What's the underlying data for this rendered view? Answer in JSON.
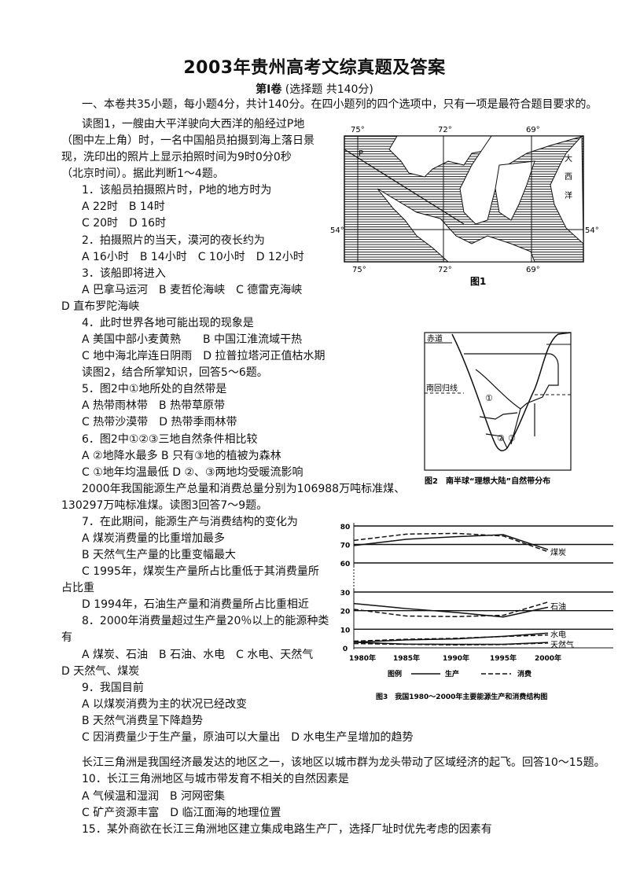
{
  "header": {
    "title": "2003年贵州高考文综真题及答案",
    "volume": "第I卷",
    "volume_note": "(选择题 共140分)",
    "instructions": "一、本卷共35小题，每小题4分，共计140分。在四小题列的四个选项中，只有一项是最符合题目要求的。"
  },
  "body_lines": [
    {
      "text": "读图1，一艘由大平洋驶向大西洋的船经过P地",
      "indent": 1
    },
    {
      "text": "（图中左上角）时，一名中国船员拍摄到海上落日景",
      "indent": 0
    },
    {
      "text": "现，洗印出的照片上显示拍照时间为9时0分0秒",
      "indent": 0
    },
    {
      "text": "（北京时间）。据此判断1～4题。",
      "indent": 0
    },
    {
      "text": "1．该船员拍摄照片时，P地的地方时为",
      "indent": 1
    },
    {
      "text": "A 22时　B 14时",
      "indent": 1
    },
    {
      "text": "C 20时　D 16时",
      "indent": 1
    },
    {
      "text": "2．拍摄照片的当天，漠河的夜长约为",
      "indent": 1
    },
    {
      "text": "A 16小时　B 14小时　C 10小时　D 12小时",
      "indent": 1
    },
    {
      "text": "3．该船即将进入",
      "indent": 1
    },
    {
      "text": "A 巴拿马运河　B 麦哲伦海峡　C 德雷克海峡",
      "indent": 1
    },
    {
      "text": "D 直布罗陀海峡",
      "indent": 0
    },
    {
      "text": "4．此时世界各地可能出现的现象是",
      "indent": 1
    },
    {
      "text": "A 美国中部小麦黄熟　　B 中国江淮流域干热",
      "indent": 1
    },
    {
      "text": "C 地中海北岸连日阴雨　D 拉普拉塔河正值枯水期",
      "indent": 1
    },
    {
      "text": "读图2，结合所掌知识，回答5～6题。",
      "indent": 1
    },
    {
      "text": "5．图2中①地所处的自然带是",
      "indent": 1
    },
    {
      "text": "A 热带雨林带　B 热带草原带",
      "indent": 1
    },
    {
      "text": "C 热带沙漠带　D 热带季雨林带",
      "indent": 1
    },
    {
      "text": "6．图2中①②③三地自然条件相比较",
      "indent": 1
    },
    {
      "text": "A ②地降水最多 B 只有③地的植被为森林",
      "indent": 1
    },
    {
      "text": "C ①地年均温最低 D ②、③两地均受暖流影响",
      "indent": 1
    },
    {
      "text": "2000年我国能源生产总量和消费总量分别为106988万吨标准煤、",
      "indent": 1
    },
    {
      "text": "130297万吨标准煤。读图3回答7～9题。",
      "indent": 0
    },
    {
      "text": "7．在此期间，能源生产与消费结构的变化为",
      "indent": 1
    },
    {
      "text": "A 煤炭消费量的比重增加最多",
      "indent": 1
    },
    {
      "text": "B 天然气生产量的比重变幅最大",
      "indent": 1
    },
    {
      "text": "C 1995年，煤炭生产量所占比重低于其消费量所",
      "indent": 1
    },
    {
      "text": "占比重",
      "indent": 0
    },
    {
      "text": "D 1994年，石油生产量和消费量所占比重相近",
      "indent": 1
    },
    {
      "text": "8．2000年消费量超过生产量20％以上的能源种类",
      "indent": 1
    },
    {
      "text": "有",
      "indent": 0
    },
    {
      "text": "A 煤炭、石油　B 石油、水电　C 水电、天然气",
      "indent": 1
    },
    {
      "text": "D 天然气、煤炭",
      "indent": 0
    },
    {
      "text": "9．我国目前",
      "indent": 1
    },
    {
      "text": "A 以煤炭消费为主的状况已经改变",
      "indent": 1
    },
    {
      "text": "B 天然气消费呈下降趋势",
      "indent": 1
    },
    {
      "text": "C 因消费量少于生产量，原油可以大量出　D 水电生产呈增加的趋势",
      "indent": 1
    }
  ],
  "body_lines_2": [
    "长江三角洲是我国经济最发达的地区之一，该地区以城市群为龙头带动了区域经济的起飞。回答10～15题。",
    "10．长江三角洲地区与城市带发育不相关的自然因素是",
    "A 气候温和湿润　B 河网密集",
    "C 矿产资源丰富　D 临江面海的地理位置",
    "15．某外商欲在长江三角洲地区建立集成电路生产厂，选择厂址时优先考虑的因素有"
  ],
  "figure1": {
    "caption": "图1",
    "top_lon_labels": [
      "75°",
      "72°",
      "69°"
    ],
    "bottom_lon_labels": [
      "75°",
      "72°",
      "69°"
    ],
    "lat_label_left": "54°",
    "lat_label_right": "54°",
    "point_label": "P",
    "ocean_label": [
      "大",
      "西",
      "洋"
    ]
  },
  "figure2": {
    "caption": "图2　南半球“理想大陆”自然带分布",
    "equator_label": "赤道",
    "tropic_label": "南回归线",
    "zone_labels": [
      "①",
      "②",
      "③"
    ]
  },
  "chart_data": {
    "type": "line",
    "title": "图3　我国1980～2000年主要能源生产和消费结构图",
    "x": [
      "1980年",
      "1985年",
      "1990年",
      "1995年",
      "2000年"
    ],
    "y_ticks_upper": [
      "80",
      "70",
      "60"
    ],
    "y_ticks_lower": [
      "30",
      "20",
      "10",
      "0"
    ],
    "axis_break": [
      30,
      60
    ],
    "ylim": [
      0,
      80
    ],
    "grid": true,
    "legend": {
      "label": "图例",
      "production": "生产",
      "consumption": "消费",
      "placement": "bottom"
    },
    "series": [
      {
        "name": "煤炭",
        "production": [
          69.4,
          72.8,
          74.2,
          75.3,
          67.2
        ],
        "consumption": [
          72.2,
          75.6,
          76.0,
          74.6,
          66.1
        ]
      },
      {
        "name": "石油",
        "production": [
          23.8,
          21.1,
          19.0,
          16.6,
          21.8
        ],
        "consumption": [
          20.7,
          17.1,
          16.8,
          17.5,
          24.6
        ]
      },
      {
        "name": "水电",
        "production": [
          3.0,
          4.3,
          4.8,
          6.2,
          7.9
        ],
        "consumption": [
          3.6,
          4.6,
          5.1,
          6.1,
          6.9
        ]
      },
      {
        "name": "天然气",
        "production": [
          3.0,
          2.0,
          1.9,
          1.9,
          2.9
        ],
        "consumption": [
          2.3,
          1.9,
          1.6,
          1.8,
          2.6
        ]
      }
    ]
  }
}
